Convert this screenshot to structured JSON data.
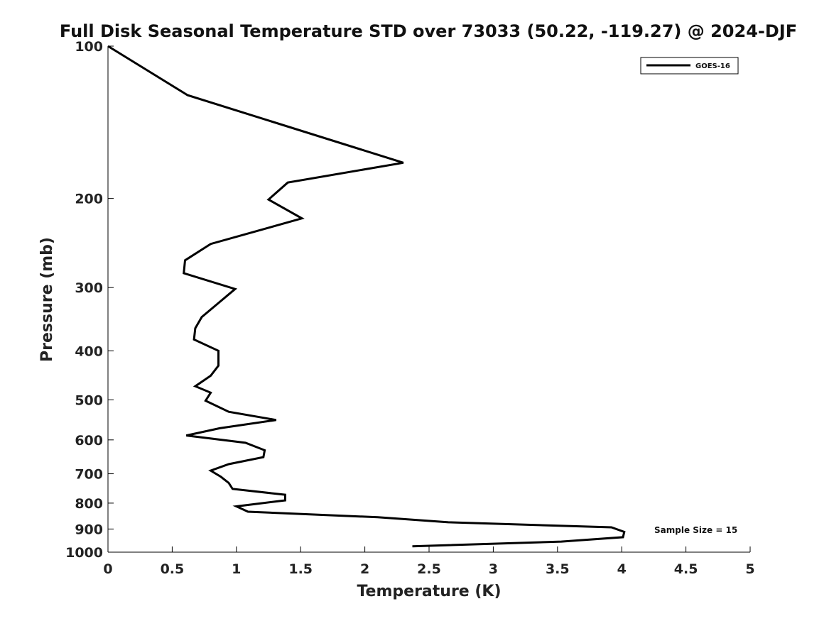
{
  "chart_data": {
    "type": "line",
    "title": "Full Disk Seasonal Temperature STD over 73033 (50.22, -119.27) @ 2024-DJF",
    "xlabel": "Temperature (K)",
    "ylabel": "Pressure (mb)",
    "xlim": [
      0,
      5
    ],
    "ylim": [
      100,
      1000
    ],
    "yscale": "log",
    "y_reversed": true,
    "xticks": [
      0,
      0.5,
      1,
      1.5,
      2,
      2.5,
      3,
      3.5,
      4,
      4.5,
      5
    ],
    "xtick_labels": [
      "0",
      "0.5",
      "1",
      "1.5",
      "2",
      "2.5",
      "3",
      "3.5",
      "4",
      "4.5",
      "5"
    ],
    "yticks": [
      100,
      200,
      300,
      400,
      500,
      600,
      700,
      800,
      900,
      1000
    ],
    "ytick_labels": [
      "100",
      "200",
      "300",
      "400",
      "500",
      "600",
      "700",
      "800",
      "900",
      "1000"
    ],
    "legend_position": "top-right",
    "annotation": "Sample Size = 15",
    "series": [
      {
        "name": "GOES-16",
        "color": "#000000",
        "points": [
          [
            0.0,
            100
          ],
          [
            0.62,
            125
          ],
          [
            2.3,
            170
          ],
          [
            1.4,
            186
          ],
          [
            1.25,
            201
          ],
          [
            1.51,
            219
          ],
          [
            0.8,
            246
          ],
          [
            0.6,
            265
          ],
          [
            0.59,
            281
          ],
          [
            0.99,
            302
          ],
          [
            0.84,
            325
          ],
          [
            0.73,
            343
          ],
          [
            0.68,
            361
          ],
          [
            0.67,
            380
          ],
          [
            0.86,
            400
          ],
          [
            0.86,
            428
          ],
          [
            0.8,
            448
          ],
          [
            0.68,
            470
          ],
          [
            0.8,
            484
          ],
          [
            0.76,
            502
          ],
          [
            0.94,
            528
          ],
          [
            1.31,
            548
          ],
          [
            0.87,
            569
          ],
          [
            0.61,
            588
          ],
          [
            1.07,
            608
          ],
          [
            1.22,
            629
          ],
          [
            1.21,
            649
          ],
          [
            0.94,
            670
          ],
          [
            0.8,
            690
          ],
          [
            0.88,
            710
          ],
          [
            0.94,
            730
          ],
          [
            0.97,
            750
          ],
          [
            1.38,
            770
          ],
          [
            1.38,
            790
          ],
          [
            1.0,
            812
          ],
          [
            1.09,
            832
          ],
          [
            2.1,
            853
          ],
          [
            2.65,
            873
          ],
          [
            3.92,
            893
          ],
          [
            4.02,
            912
          ],
          [
            4.01,
            934
          ],
          [
            3.53,
            953
          ],
          [
            2.37,
            974
          ]
        ]
      }
    ]
  }
}
